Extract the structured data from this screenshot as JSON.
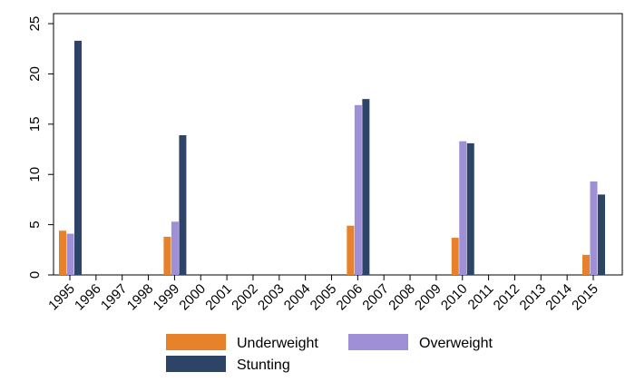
{
  "chart_data": {
    "type": "bar",
    "title": "",
    "xlabel": "",
    "ylabel": "",
    "ylim": [
      0,
      26
    ],
    "yticks": [
      0,
      5,
      10,
      15,
      20,
      25
    ],
    "grid": false,
    "legend_position": "bottom",
    "categories": [
      "1995",
      "1996",
      "1997",
      "1998",
      "1999",
      "2000",
      "2001",
      "2002",
      "2003",
      "2004",
      "2005",
      "2006",
      "2007",
      "2008",
      "2009",
      "2010",
      "2011",
      "2012",
      "2013",
      "2014",
      "2015"
    ],
    "series": [
      {
        "name": "Underweight",
        "color": "#e8822a",
        "values": [
          4.4,
          null,
          null,
          null,
          3.8,
          null,
          null,
          null,
          null,
          null,
          null,
          4.9,
          null,
          null,
          null,
          3.7,
          null,
          null,
          null,
          null,
          2.0
        ]
      },
      {
        "name": "Overweight",
        "color": "#9f8fd6",
        "values": [
          4.1,
          null,
          null,
          null,
          5.3,
          null,
          null,
          null,
          null,
          null,
          null,
          16.9,
          null,
          null,
          null,
          13.3,
          null,
          null,
          null,
          null,
          9.3
        ]
      },
      {
        "name": "Stunting",
        "color": "#2e4467",
        "values": [
          23.3,
          null,
          null,
          null,
          13.9,
          null,
          null,
          null,
          null,
          null,
          null,
          17.5,
          null,
          null,
          null,
          13.1,
          null,
          null,
          null,
          null,
          8.0
        ]
      }
    ]
  }
}
